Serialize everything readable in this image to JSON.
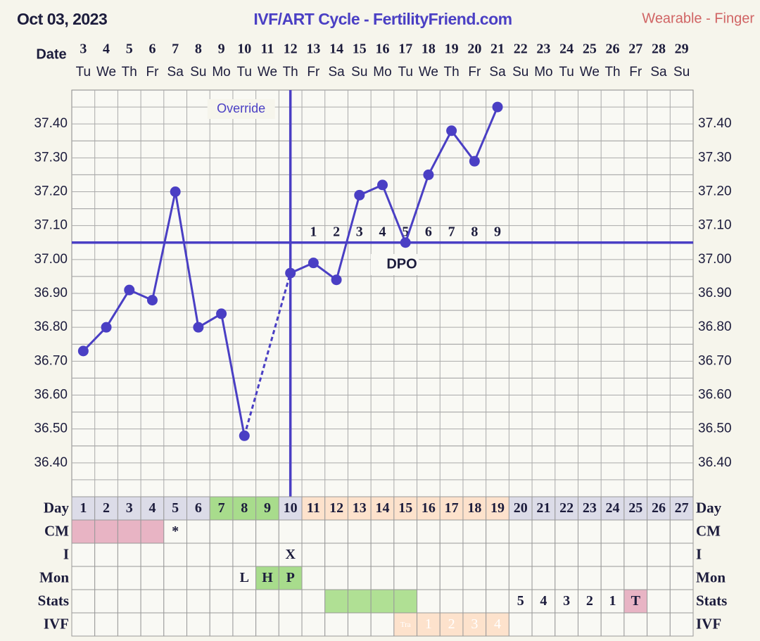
{
  "header": {
    "date": "Oct 03, 2023",
    "title": "IVF/ART Cycle - FertilityFriend.com",
    "source": "Wearable - Finger"
  },
  "chart_data": {
    "type": "line",
    "date_label": "Date",
    "categories": [
      "3",
      "4",
      "5",
      "6",
      "7",
      "8",
      "9",
      "10",
      "11",
      "12",
      "13",
      "14",
      "15",
      "16",
      "17",
      "18",
      "19",
      "20",
      "21",
      "22",
      "23",
      "24",
      "25",
      "26",
      "27",
      "28",
      "29"
    ],
    "weekdays": [
      "Tu",
      "We",
      "Th",
      "Fr",
      "Sa",
      "Su",
      "Mo",
      "Tu",
      "We",
      "Th",
      "Fr",
      "Sa",
      "Su",
      "Mo",
      "Tu",
      "We",
      "Th",
      "Fr",
      "Sa",
      "Su",
      "Mo",
      "Tu",
      "We",
      "Th",
      "Fr",
      "Sa",
      "Su"
    ],
    "values": [
      36.73,
      36.8,
      36.91,
      36.88,
      37.2,
      36.8,
      36.84,
      36.48,
      null,
      36.96,
      36.99,
      36.94,
      37.19,
      37.22,
      37.05,
      37.25,
      37.38,
      37.29,
      37.45,
      null,
      null,
      null,
      null,
      null,
      null,
      null,
      null
    ],
    "color": "#4a3fc4",
    "ylim": [
      36.3,
      37.5
    ],
    "yticks": [
      {
        "value": 36.4,
        "label": "36.40"
      },
      {
        "value": 36.5,
        "label": "36.50"
      },
      {
        "value": 36.6,
        "label": "36.60"
      },
      {
        "value": 36.7,
        "label": "36.70"
      },
      {
        "value": 36.8,
        "label": "36.80"
      },
      {
        "value": 36.9,
        "label": "36.90"
      },
      {
        "value": 37.0,
        "label": "37.00"
      },
      {
        "value": 37.1,
        "label": "37.10"
      },
      {
        "value": 37.2,
        "label": "37.20"
      },
      {
        "value": 37.3,
        "label": "37.30"
      },
      {
        "value": 37.4,
        "label": "37.40"
      }
    ],
    "grid": true,
    "coverline": 37.05,
    "ovulation_day": 10,
    "override_label": "Override",
    "dpo_label": "DPO",
    "dpo_labels": [
      1,
      2,
      3,
      4,
      5,
      6,
      7,
      8,
      9
    ]
  },
  "table": {
    "rows": [
      {
        "label": "Day",
        "cells": [
          1,
          2,
          3,
          4,
          5,
          6,
          7,
          8,
          9,
          10,
          11,
          12,
          13,
          14,
          15,
          16,
          17,
          18,
          19,
          20,
          21,
          22,
          23,
          24,
          25,
          26,
          27
        ],
        "fills": [
          "#dcdce8",
          "#dcdce8",
          "#dcdce8",
          "#dcdce8",
          "#dcdce8",
          "#dcdce8",
          "#a8dc8c",
          "#a8dc8c",
          "#a8dc8c",
          "#dcdce8",
          "#fde2cc",
          "#fde2cc",
          "#fde2cc",
          "#fde2cc",
          "#fde2cc",
          "#fde2cc",
          "#fde2cc",
          "#fde2cc",
          "#fde2cc",
          "#dcdce8",
          "#dcdce8",
          "#dcdce8",
          "#dcdce8",
          "#dcdce8",
          "#dcdce8",
          "#dcdce8",
          "#dcdce8"
        ]
      },
      {
        "label": "CM",
        "cells": [
          null,
          null,
          null,
          null,
          "*",
          null,
          null,
          null,
          null,
          null,
          null,
          null,
          null,
          null,
          null,
          null,
          null,
          null,
          null,
          null,
          null,
          null,
          null,
          null,
          null,
          null,
          null
        ],
        "fills": [
          "#e8b4c4",
          "#e8b4c4",
          "#e8b4c4",
          "#e8b4c4",
          null,
          null,
          null,
          null,
          null,
          null,
          null,
          null,
          null,
          null,
          null,
          null,
          null,
          null,
          null,
          null,
          null,
          null,
          null,
          null,
          null,
          null,
          null
        ]
      },
      {
        "label": "I",
        "cells": [
          null,
          null,
          null,
          null,
          null,
          null,
          null,
          null,
          null,
          "X",
          null,
          null,
          null,
          null,
          null,
          null,
          null,
          null,
          null,
          null,
          null,
          null,
          null,
          null,
          null,
          null,
          null
        ]
      },
      {
        "label": "Mon",
        "cells": [
          null,
          null,
          null,
          null,
          null,
          null,
          null,
          "L",
          "H",
          "P",
          null,
          null,
          null,
          null,
          null,
          null,
          null,
          null,
          null,
          null,
          null,
          null,
          null,
          null,
          null,
          null,
          null
        ],
        "fills": [
          null,
          null,
          null,
          null,
          null,
          null,
          null,
          null,
          "#a8dc8c",
          "#a8dc8c",
          null,
          null,
          null,
          null,
          null,
          null,
          null,
          null,
          null,
          null,
          null,
          null,
          null,
          null,
          null,
          null,
          null
        ]
      },
      {
        "label": "Stats",
        "cells": [
          null,
          null,
          null,
          null,
          null,
          null,
          null,
          null,
          null,
          null,
          null,
          null,
          null,
          null,
          null,
          null,
          null,
          null,
          null,
          5,
          4,
          3,
          2,
          1,
          "T",
          null,
          null
        ],
        "fills": [
          null,
          null,
          null,
          null,
          null,
          null,
          null,
          null,
          null,
          null,
          null,
          "#b0e094",
          "#b0e094",
          "#b0e094",
          "#b0e094",
          null,
          null,
          null,
          null,
          null,
          null,
          null,
          null,
          null,
          "#e8b4c4",
          null,
          null
        ]
      },
      {
        "label": "IVF",
        "cells": [
          null,
          null,
          null,
          null,
          null,
          null,
          null,
          null,
          null,
          null,
          null,
          null,
          null,
          null,
          "Tra",
          1,
          2,
          3,
          4,
          null,
          null,
          null,
          null,
          null,
          null,
          null,
          null
        ],
        "fills": [
          null,
          null,
          null,
          null,
          null,
          null,
          null,
          null,
          null,
          null,
          null,
          null,
          null,
          null,
          "#fde2cc",
          "#fde2cc",
          "#fde2cc",
          "#fde2cc",
          "#fde2cc",
          null,
          null,
          null,
          null,
          null,
          null,
          null,
          null
        ],
        "text_color": "#ffffff"
      }
    ]
  }
}
